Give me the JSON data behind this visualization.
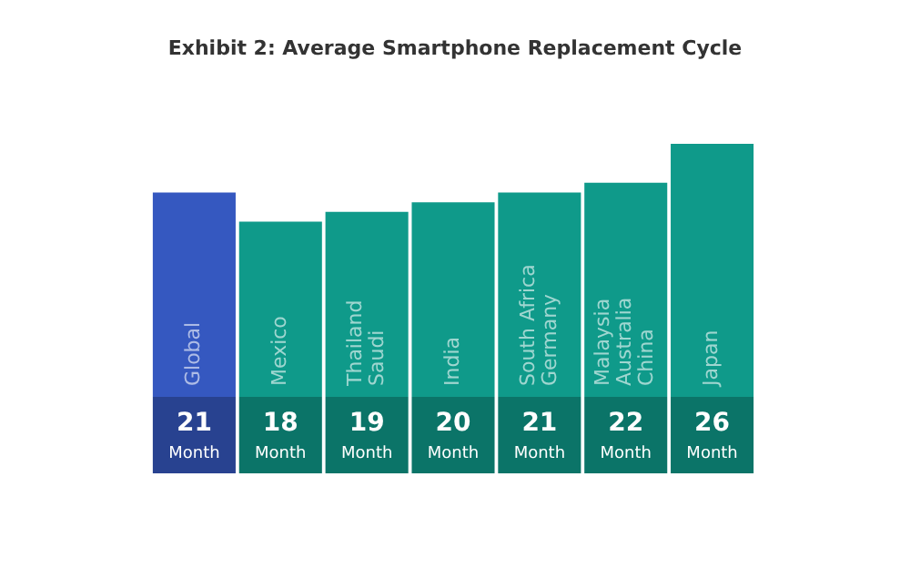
{
  "chart_data": {
    "type": "bar",
    "title": "Exhibit 2: Average Smartphone Replacement Cycle",
    "categories": [
      "Global",
      "Mexico",
      "Thailand\nSaudi",
      "India",
      "South Africa\nGermany",
      "Malaysia\nAustralia\nChina",
      "Japan"
    ],
    "values": [
      21,
      18,
      19,
      20,
      21,
      22,
      26
    ],
    "colors": [
      "#3558c0",
      "#0f9a8a",
      "#0f9a8a",
      "#0f9a8a",
      "#0f9a8a",
      "#0f9a8a",
      "#0f9a8a"
    ],
    "value_labels": [
      "21\nMonth",
      "18\nMonth",
      "19\nMonth",
      "20\nMonth",
      "21\nMonth",
      "22\nMonth",
      "26\nMonth"
    ],
    "legend": false
  }
}
